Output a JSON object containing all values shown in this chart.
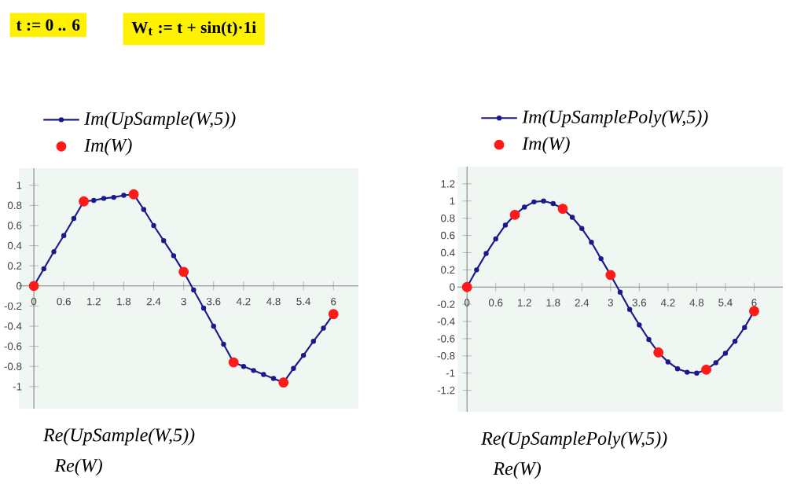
{
  "chart_data": [
    {
      "type": "line",
      "title": "t := 0 .. 6",
      "subtitle": "W$_{t}$ := t + sin(t)·1i",
      "xlabel": "Re(UpSample(W,5))",
      "annotations": [
        "Re(W)"
      ],
      "xlim": [
        -0.3,
        6.5
      ],
      "ylim": [
        -1.22,
        1.17
      ],
      "xticks": [
        0,
        0.6,
        1.2,
        1.8,
        2.4,
        3,
        3.6,
        4.2,
        4.8,
        5.4,
        6
      ],
      "yticks": [
        -1,
        -0.8,
        -0.6,
        -0.4,
        -0.2,
        0,
        0.2,
        0.4,
        0.6,
        0.8,
        1
      ],
      "legend": "top",
      "series": [
        {
          "name": "Im(UpSample(W,5))",
          "color": "#1a1a8c",
          "marker": "circle",
          "x": [
            0,
            0.2,
            0.4,
            0.6,
            0.8,
            1,
            1.2,
            1.4,
            1.6,
            1.8,
            2,
            2.2,
            2.4,
            2.6,
            2.8,
            3,
            3.2,
            3.4,
            3.6,
            3.8,
            4,
            4.2,
            4.4,
            4.6,
            4.8,
            5,
            5.2,
            5.4,
            5.6,
            5.8,
            6
          ],
          "values": [
            0,
            0.17,
            0.34,
            0.5,
            0.67,
            0.84,
            0.85,
            0.87,
            0.88,
            0.9,
            0.91,
            0.76,
            0.6,
            0.45,
            0.3,
            0.14,
            -0.04,
            -0.22,
            -0.4,
            -0.58,
            -0.76,
            -0.8,
            -0.84,
            -0.88,
            -0.92,
            -0.96,
            -0.82,
            -0.69,
            -0.55,
            -0.42,
            -0.28
          ]
        },
        {
          "name": "Im(W)",
          "type": "scatter",
          "color": "#ff1a1a",
          "marker": "circle",
          "x": [
            0,
            1,
            2,
            3,
            4,
            5,
            6
          ],
          "values": [
            0,
            0.84,
            0.91,
            0.14,
            -0.76,
            -0.96,
            -0.28
          ]
        }
      ]
    },
    {
      "type": "line",
      "xlabel": "Re(UpSamplePoly(W,5))",
      "annotations": [
        "Re(W)"
      ],
      "xlim": [
        -0.2,
        6.6
      ],
      "ylim": [
        -1.45,
        1.4
      ],
      "xticks": [
        0,
        0.6,
        1.2,
        1.8,
        2.4,
        3,
        3.6,
        4.2,
        4.8,
        5.4,
        6
      ],
      "yticks": [
        -1.2,
        -1,
        -0.8,
        -0.6,
        -0.4,
        -0.2,
        0,
        0.2,
        0.4,
        0.6,
        0.8,
        1,
        1.2
      ],
      "legend": "top",
      "series": [
        {
          "name": "Im(UpSamplePoly(W,5))",
          "color": "#1a1a8c",
          "marker": "circle",
          "x": [
            0,
            0.2,
            0.4,
            0.6,
            0.8,
            1,
            1.2,
            1.4,
            1.6,
            1.8,
            2,
            2.2,
            2.4,
            2.6,
            2.8,
            3,
            3.2,
            3.4,
            3.6,
            3.8,
            4,
            4.2,
            4.4,
            4.6,
            4.8,
            5,
            5.2,
            5.4,
            5.6,
            5.8,
            6
          ],
          "values": [
            0,
            0.2,
            0.39,
            0.56,
            0.72,
            0.84,
            0.93,
            0.99,
            1,
            0.97,
            0.91,
            0.81,
            0.68,
            0.52,
            0.33,
            0.14,
            -0.06,
            -0.26,
            -0.44,
            -0.61,
            -0.76,
            -0.87,
            -0.95,
            -0.99,
            -1,
            -0.96,
            -0.88,
            -0.77,
            -0.63,
            -0.47,
            -0.28
          ]
        },
        {
          "name": "Im(W)",
          "type": "scatter",
          "color": "#ff1a1a",
          "marker": "circle",
          "x": [
            0,
            1,
            2,
            3,
            4,
            5,
            6
          ],
          "values": [
            0,
            0.84,
            0.91,
            0.14,
            -0.76,
            -0.96,
            -0.28
          ]
        }
      ]
    }
  ]
}
